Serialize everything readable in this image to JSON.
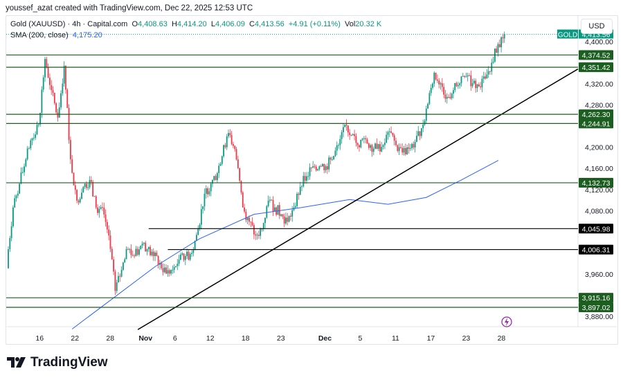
{
  "credit": "youssef_azat created with TradingView.com, Dec 22, 2025 12:53 UTC",
  "legend": {
    "symbol": "Gold (XAUUSD) · 4h · Capital.com",
    "o_label": "O",
    "o": "4,408.63",
    "h_label": "H",
    "h": "4,414.20",
    "l_label": "L",
    "l": "4,406.09",
    "c_label": "C",
    "c": "4,413.56",
    "change": "+4.91 (+0.11%)",
    "vol_label": "Vol",
    "vol": "20.32 K",
    "sma_label": "SMA (200, close)",
    "sma_value": "4,175.20"
  },
  "currency_button": "USD",
  "logo_text": "TradingView",
  "colors": {
    "up": "#089981",
    "down": "#f23645",
    "level": "#1b5e20",
    "sma": "#2962ff",
    "trend": "#000000"
  },
  "chart_data": {
    "type": "candlestick",
    "title": "Gold (XAUUSD) · 4h · Capital.com",
    "ylim": [
      3870,
      4420
    ],
    "price_ticks": [
      "4,400.00",
      "4,320.00",
      "4,280.00",
      "4,200.00",
      "4,160.00",
      "4,120.00",
      "4,080.00",
      "3,960.00",
      "3,880.00"
    ],
    "price_tick_values": [
      4400,
      4320,
      4280,
      4200,
      4160,
      4120,
      4080,
      3960,
      3880
    ],
    "time_ticks": [
      {
        "label": "16",
        "idx": 5
      },
      {
        "label": "22",
        "idx": 11
      },
      {
        "label": "28",
        "idx": 17
      },
      {
        "label": "Nov",
        "idx": 23,
        "bold": true
      },
      {
        "label": "6",
        "idx": 28
      },
      {
        "label": "12",
        "idx": 34
      },
      {
        "label": "18",
        "idx": 40
      },
      {
        "label": "23",
        "idx": 46
      },
      {
        "label": "Dec",
        "idx": 53.5,
        "bold": true
      },
      {
        "label": "5",
        "idx": 59.5
      },
      {
        "label": "11",
        "idx": 65.5
      },
      {
        "label": "17",
        "idx": 71.5
      },
      {
        "label": "23",
        "idx": 77.5
      },
      {
        "label": "28",
        "idx": 83.5
      }
    ],
    "closes": [
      3981,
      4086,
      4131,
      4177,
      4217,
      4243,
      4367,
      4308,
      4256,
      4354,
      4177,
      4099,
      4125,
      4138,
      4086,
      4086,
      4033,
      3928,
      3968,
      4007,
      3994,
      4014,
      4007,
      3994,
      3981,
      3961,
      3968,
      3987,
      3994,
      4000,
      4046,
      4112,
      4131,
      4151,
      4204,
      4223,
      4177,
      4086,
      4059,
      4033,
      4046,
      4099,
      4086,
      4073,
      4059,
      4086,
      4125,
      4145,
      4164,
      4164,
      4164,
      4177,
      4204,
      4243,
      4223,
      4204,
      4217,
      4204,
      4197,
      4204,
      4230,
      4204,
      4190,
      4197,
      4210,
      4236,
      4282,
      4341,
      4321,
      4295,
      4308,
      4321,
      4334,
      4321,
      4315,
      4330,
      4360,
      4395,
      4413.56
    ],
    "sma": [
      [
        10,
        3856
      ],
      [
        16.5,
        3915
      ],
      [
        23,
        3974
      ],
      [
        30,
        4027
      ],
      [
        38.5,
        4073
      ],
      [
        46,
        4086
      ],
      [
        53.5,
        4101
      ],
      [
        59.5,
        4092
      ],
      [
        65.5,
        4105
      ],
      [
        71,
        4138
      ],
      [
        76.8,
        4175.2
      ]
    ],
    "levels": [
      {
        "price": 4374.52,
        "label": "4,374.52",
        "from_idx": 0
      },
      {
        "price": 4351.42,
        "label": "4,351.42",
        "from_idx": 0
      },
      {
        "price": 4262.3,
        "label": "4,262.30",
        "from_idx": 0
      },
      {
        "price": 4244.91,
        "label": "4,244.91",
        "from_idx": 0
      },
      {
        "price": 4132.73,
        "label": "4,132.73",
        "from_idx": 0
      },
      {
        "price": 4045.98,
        "label": "4,045.98",
        "from_idx": 22
      },
      {
        "price": 4006.31,
        "label": "4,006.31",
        "from_idx": 25
      },
      {
        "price": 3915.16,
        "label": "3,915.16",
        "from_idx": 0
      },
      {
        "price": 3897.02,
        "label": "3,897.02",
        "from_idx": 0
      }
    ],
    "trendline": {
      "start_idx": 20.3,
      "start_price": 3855,
      "end_price": 4348
    },
    "last_price": {
      "symbol": "GOLD",
      "label": "4,413.56",
      "price": 4413.56
    }
  }
}
